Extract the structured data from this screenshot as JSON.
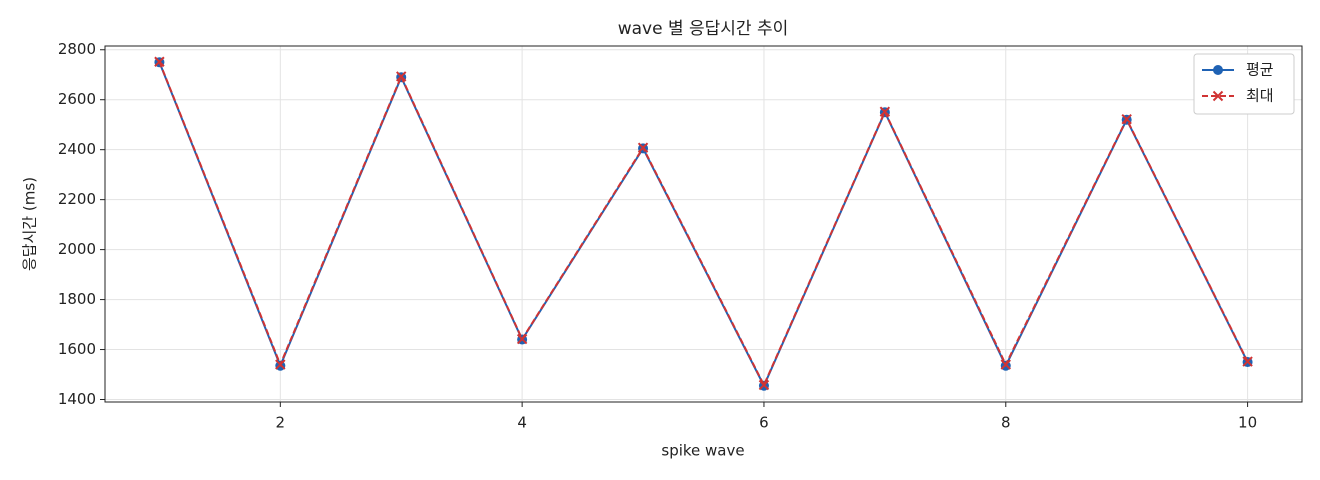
{
  "chart_data": {
    "type": "line",
    "title": "wave 별 응답시간 추이",
    "x_label": "spike wave",
    "y_label": "응답시간 (ms)",
    "x": [
      1,
      2,
      3,
      4,
      5,
      6,
      7,
      8,
      9,
      10
    ],
    "series": [
      {
        "name": "평균",
        "color": "#1f62b4",
        "marker": "circle",
        "dash": false,
        "values": [
          2750,
          1535,
          2690,
          1640,
          2405,
          1455,
          2550,
          1535,
          2520,
          1550
        ]
      },
      {
        "name": "최대",
        "color": "#d03434",
        "marker": "x",
        "dash": true,
        "values": [
          2752,
          1540,
          2693,
          1642,
          2408,
          1458,
          2552,
          1540,
          2522,
          1552
        ]
      }
    ],
    "xlim": [
      0.55,
      10.45
    ],
    "xticks": [
      2,
      4,
      6,
      8,
      10
    ],
    "ylim": [
      1390,
      2815
    ],
    "yticks": [
      1400,
      1600,
      1800,
      2000,
      2200,
      2400,
      2600,
      2800
    ],
    "grid": true,
    "legend": "upper right"
  }
}
